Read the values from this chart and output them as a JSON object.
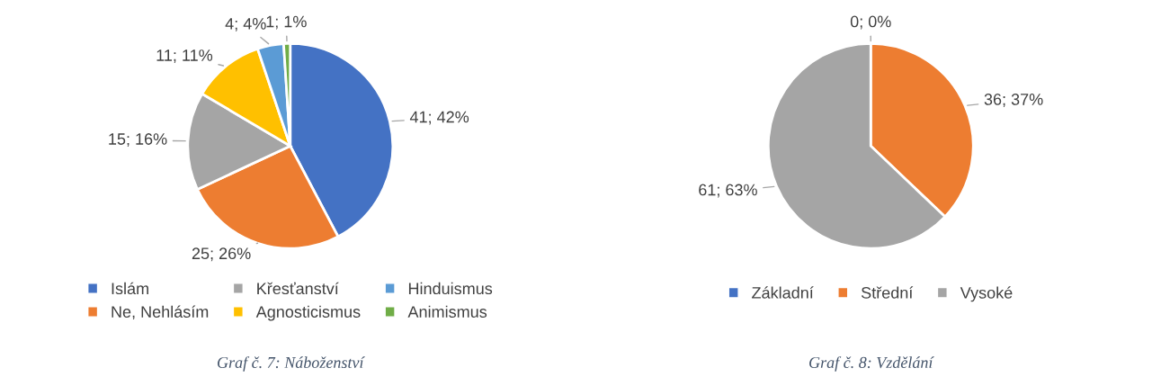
{
  "chart_data": [
    {
      "type": "pie",
      "categories": [
        "Islám",
        "Ne, Nehlásím",
        "Křesťanství",
        "Agnosticismus",
        "Hinduismus",
        "Animismus"
      ],
      "values": [
        41,
        25,
        15,
        11,
        4,
        1
      ],
      "colors": [
        "#4472c4",
        "#ed7d31",
        "#a5a5a5",
        "#ffc000",
        "#5b9bd5",
        "#70ad47"
      ],
      "value_labels": [
        "41; 42%",
        "25; 26%",
        "15; 16%",
        "11; 11%",
        "4; 4%",
        "1; 1%"
      ],
      "legend": "bottom",
      "annotations": [
        "Graf č. 7: Náboženství"
      ]
    },
    {
      "type": "pie",
      "categories": [
        "Základní",
        "Střední",
        "Vysoké"
      ],
      "values": [
        0,
        36,
        61
      ],
      "colors": [
        "#4472c4",
        "#ed7d31",
        "#a5a5a5"
      ],
      "value_labels": [
        "0; 0%",
        "36; 37%",
        "61; 63%"
      ],
      "legend": "bottom",
      "annotations": [
        "Graf č. 8: Vzdělání"
      ]
    }
  ]
}
